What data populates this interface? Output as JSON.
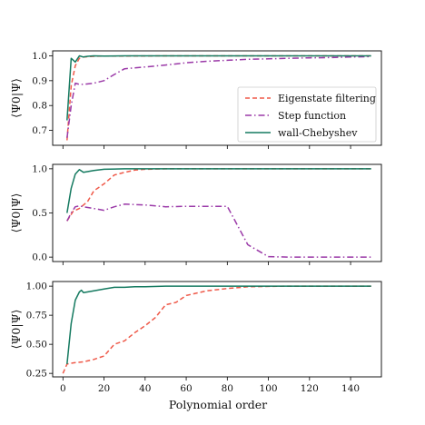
{
  "chart_data": {
    "type": "line",
    "xlabel": "Polynomial order",
    "xlim": [
      -5,
      155
    ],
    "xticks": [
      0,
      20,
      40,
      60,
      80,
      100,
      120,
      140
    ],
    "legend_placement": "lower-right (top panel)",
    "grid": false,
    "series_styles": [
      {
        "name": "Eigenstate filtering",
        "color": "#ef5a4a",
        "dash": "dashed"
      },
      {
        "name": "Step function",
        "color": "#9b3aa8",
        "dash": "dashdot"
      },
      {
        "name": "wall-Chebyshev",
        "color": "#157a60",
        "dash": "solid"
      }
    ],
    "panels": [
      {
        "ylabel": "⟨Ψ0|Ψ⟩",
        "ylim": [
          0.64,
          1.02
        ],
        "yticks": [
          {
            "v": 0.7,
            "t": "0.7"
          },
          {
            "v": 0.8,
            "t": "0.8"
          },
          {
            "v": 0.9,
            "t": "0.9"
          },
          {
            "v": 1.0,
            "t": "1.0"
          }
        ],
        "series": [
          {
            "name": "Eigenstate filtering",
            "x": [
              2,
              4,
              6,
              8,
              10,
              15,
              20,
              30,
              50,
              80,
              100,
              150
            ],
            "y": [
              0.66,
              0.88,
              0.96,
              0.99,
              0.995,
              0.998,
              0.999,
              0.999,
              1.0,
              1.0,
              1.0,
              1.0
            ]
          },
          {
            "name": "Step function",
            "x": [
              2,
              4,
              6,
              8,
              10,
              15,
              20,
              25,
              30,
              40,
              50,
              60,
              70,
              80,
              90,
              100,
              110,
              120,
              130,
              140,
              150
            ],
            "y": [
              0.67,
              0.8,
              0.89,
              0.885,
              0.885,
              0.89,
              0.9,
              0.925,
              0.948,
              0.955,
              0.963,
              0.972,
              0.978,
              0.982,
              0.986,
              0.988,
              0.99,
              0.992,
              0.993,
              0.995,
              0.997
            ]
          },
          {
            "name": "wall-Chebyshev",
            "x": [
              2,
              4,
              6,
              8,
              10,
              12,
              15,
              20,
              30,
              50,
              80,
              100,
              150
            ],
            "y": [
              0.74,
              0.99,
              0.975,
              1.0,
              0.995,
              0.998,
              1.0,
              0.999,
              1.0,
              1.0,
              1.0,
              1.0,
              1.0
            ]
          }
        ]
      },
      {
        "ylabel": "⟨Ψ0|Ψ⟩",
        "ylim": [
          -0.05,
          1.05
        ],
        "yticks": [
          {
            "v": 0.0,
            "t": "0.0"
          },
          {
            "v": 0.5,
            "t": "0.5"
          },
          {
            "v": 1.0,
            "t": "1.0"
          }
        ],
        "series": [
          {
            "name": "Eigenstate filtering",
            "x": [
              2,
              5,
              8,
              12,
              15,
              20,
              25,
              30,
              35,
              40,
              50,
              80,
              100,
              150
            ],
            "y": [
              0.41,
              0.52,
              0.55,
              0.63,
              0.75,
              0.83,
              0.93,
              0.96,
              0.985,
              0.995,
              1.0,
              1.0,
              1.0,
              1.0
            ]
          },
          {
            "name": "Step function",
            "x": [
              2,
              4,
              6,
              8,
              10,
              15,
              20,
              25,
              30,
              40,
              50,
              60,
              70,
              80,
              90,
              100,
              110,
              120,
              150
            ],
            "y": [
              0.41,
              0.5,
              0.57,
              0.58,
              0.57,
              0.55,
              0.53,
              0.57,
              0.6,
              0.59,
              0.57,
              0.575,
              0.575,
              0.575,
              0.14,
              0.005,
              0.0,
              0.0,
              0.0
            ]
          },
          {
            "name": "wall-Chebyshev",
            "x": [
              2,
              4,
              6,
              8,
              10,
              15,
              20,
              30,
              50,
              80,
              100,
              150
            ],
            "y": [
              0.5,
              0.78,
              0.94,
              0.99,
              0.96,
              0.98,
              0.995,
              1.0,
              1.0,
              1.0,
              1.0,
              1.0
            ]
          }
        ]
      },
      {
        "ylabel": "⟨Ψ0|Ψ⟩",
        "ylim": [
          0.22,
          1.04
        ],
        "yticks": [
          {
            "v": 0.25,
            "t": "0.25"
          },
          {
            "v": 0.5,
            "t": "0.50"
          },
          {
            "v": 0.75,
            "t": "0.75"
          },
          {
            "v": 1.0,
            "t": "1.00"
          }
        ],
        "series": [
          {
            "name": "Eigenstate filtering",
            "x": [
              0,
              2,
              5,
              10,
              15,
              20,
              25,
              30,
              35,
              40,
              45,
              50,
              55,
              60,
              70,
              80,
              90,
              100,
              110,
              150
            ],
            "y": [
              0.25,
              0.33,
              0.34,
              0.35,
              0.37,
              0.4,
              0.5,
              0.53,
              0.6,
              0.66,
              0.73,
              0.84,
              0.86,
              0.92,
              0.96,
              0.98,
              0.995,
              0.998,
              1.0,
              1.0
            ]
          },
          {
            "name": "wall-Chebyshev",
            "x": [
              2,
              4,
              6,
              8,
              9,
              10,
              15,
              20,
              25,
              30,
              35,
              40,
              50,
              80,
              150
            ],
            "y": [
              0.33,
              0.68,
              0.88,
              0.95,
              0.965,
              0.945,
              0.96,
              0.975,
              0.99,
              0.99,
              0.995,
              0.995,
              1.0,
              1.0,
              1.0
            ]
          }
        ]
      }
    ]
  }
}
